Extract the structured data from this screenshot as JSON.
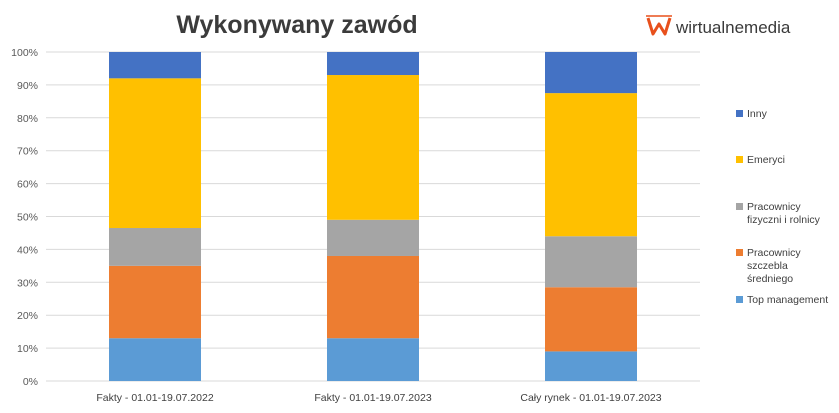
{
  "brand": {
    "name": "wirtualnemedia",
    "logo": "wirtualnemedia-logo-icon",
    "accent": "#e8501c"
  },
  "chart_data": {
    "type": "bar",
    "stacked": true,
    "title": "Wykonywany zawód",
    "xlabel": "",
    "ylabel": "",
    "ylim": [
      0,
      100
    ],
    "y_tick_labels": [
      "0%",
      "10%",
      "20%",
      "30%",
      "40%",
      "50%",
      "60%",
      "70%",
      "80%",
      "90%",
      "100%"
    ],
    "grid": true,
    "legend_position": "right",
    "categories": [
      "Fakty - 01.01-19.07.2022",
      "Fakty - 01.01-19.07.2023",
      "Cały rynek - 01.01-19.07.2023"
    ],
    "series": [
      {
        "name": "Top management",
        "color": "#5b9bd5",
        "values": [
          13,
          13,
          9
        ]
      },
      {
        "name": "Pracownicy szczebla średniego",
        "color": "#ed7d31",
        "values": [
          22,
          25,
          19.5
        ]
      },
      {
        "name": "Pracownicy fizyczni i rolnicy",
        "color": "#a5a5a5",
        "values": [
          11.5,
          11,
          15.5
        ]
      },
      {
        "name": "Emeryci",
        "color": "#ffc000",
        "values": [
          45.5,
          44,
          43.5
        ]
      },
      {
        "name": "Inny",
        "color": "#4472c4",
        "values": [
          8,
          7,
          12.5
        ]
      }
    ]
  }
}
